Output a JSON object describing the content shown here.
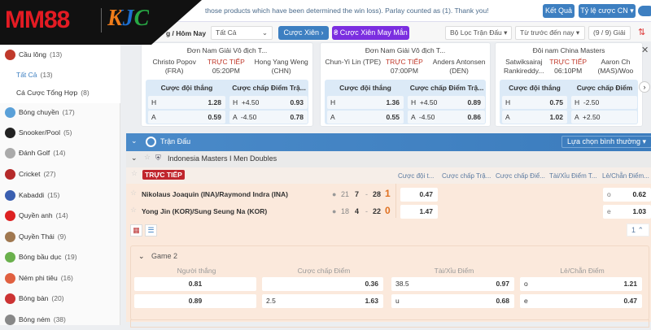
{
  "brand": {
    "logo_text": "MM88",
    "partner_text": "KJC"
  },
  "notice": "those products which have been determined the win loss). Parlay counted as (1). Thank you!",
  "header": {
    "results": "Kết Quả",
    "odds_type": "Tỷ lệ cược CN ▾"
  },
  "toolbar": {
    "date_label": "g / Hôm Nay",
    "filter_select": "Tất Cả",
    "parlay": "Cược Xiên",
    "lucky_parlay": "Cược Xiên May Mắn",
    "match_filter": "Bộ Lọc Trận Đấu ▾",
    "sort": "Từ trước đến nay ▾",
    "leagues": "(9 / 9) Giải"
  },
  "sidebar": {
    "items": [
      {
        "label": "Cầu lông",
        "count": "(13)",
        "color": "#c0392b"
      },
      {
        "label": "Tất Cả",
        "count": "(13)",
        "sub": true
      },
      {
        "label": "Cá Cược Tổng Hợp",
        "count": "(8)",
        "sub": true
      },
      {
        "label": "Bóng chuyền",
        "count": "(17)",
        "color": "#5aa0d8"
      },
      {
        "label": "Snooker/Pool",
        "count": "(5)",
        "color": "#222"
      },
      {
        "label": "Đánh Golf",
        "count": "(14)",
        "color": "#aaa"
      },
      {
        "label": "Cricket",
        "count": "(27)",
        "color": "#b52a2a"
      },
      {
        "label": "Kabaddi",
        "count": "(15)",
        "color": "#3a5fb0"
      },
      {
        "label": "Quyền anh",
        "count": "(14)",
        "color": "#d22"
      },
      {
        "label": "Quyền Thái",
        "count": "(9)",
        "color": "#a07850"
      },
      {
        "label": "Bóng bầu dục",
        "count": "(19)",
        "color": "#6ab04c"
      },
      {
        "label": "Ném phi tiêu",
        "count": "(16)",
        "color": "#e06040"
      },
      {
        "label": "Bóng bàn",
        "count": "(20)",
        "color": "#c33"
      },
      {
        "label": "Bóng ném",
        "count": "(38)",
        "color": "#888"
      }
    ]
  },
  "cards": [
    {
      "title": "Đơn Nam Giải Vô địch T...",
      "home": "Christo Popov\n(FRA)",
      "status": "TRỰC TIẾP",
      "time": "05:20PM",
      "away": "Hong Yang Weng\n(CHN)",
      "h1": "Cược đội thắng",
      "h2": "Cược chấp Điểm Trậ...",
      "rows": [
        {
          "s": "H",
          "w": "1.28",
          "hc": "H  +4.50",
          "ho": "0.93"
        },
        {
          "s": "A",
          "w": "0.59",
          "hc": "A  -4.50",
          "ho": "0.78"
        }
      ]
    },
    {
      "title": "Đơn Nam Giải Vô địch T...",
      "home": "Chun-Yi Lin (TPE)",
      "status": "TRỰC TIẾP",
      "time": "07:00PM",
      "away": "Anders Antonsen\n(DEN)",
      "h1": "Cược đội thắng",
      "h2": "Cược chấp Điểm Trậ...",
      "rows": [
        {
          "s": "H",
          "w": "1.36",
          "hc": "H  +4.50",
          "ho": "0.89"
        },
        {
          "s": "A",
          "w": "0.55",
          "hc": "A  -4.50",
          "ho": "0.86"
        }
      ]
    },
    {
      "title": "Đôi nam China Masters",
      "home": "Satwiksairaj\nRankireddy...",
      "status": "TRỰC TIẾP",
      "time": "06:10PM",
      "away": "Aaron Ch\n(MAS)/Woo",
      "h1": "Cược đội thắng",
      "h2": "Cược chấp Điểm",
      "rows": [
        {
          "s": "H",
          "w": "0.75",
          "hc": "H  -2.50",
          "ho": ""
        },
        {
          "s": "A",
          "w": "1.02",
          "hc": "A  +2.50",
          "ho": ""
        }
      ]
    }
  ],
  "section": {
    "title": "Trận Đấu",
    "view": "Lựa chọn bình thường ▾"
  },
  "league": "Indonesia Masters I Men Doubles",
  "live_badge": "TRỰC TIẾP",
  "columns": [
    "Cược đội t...",
    "Cược chấp Trậ...",
    "Cược chấp Điể...",
    "Tài/Xỉu Điểm T...",
    "Lẻ/Chẵn Điểm..."
  ],
  "teams": [
    {
      "name": "Nikolaus Joaquin (INA)/Raymond Indra (INA)",
      "prev": "21",
      "cur": "7",
      "opp": "28",
      "games": "1",
      "win": "0.47",
      "oe": "o",
      "oe_odds": "0.62"
    },
    {
      "name": "Yong Jin (KOR)/Sung Seung Na (KOR)",
      "prev": "18",
      "cur": "4",
      "opp": "22",
      "games": "0",
      "win": "1.47",
      "oe": "e",
      "oe_odds": "1.03"
    }
  ],
  "pager": "1",
  "game": {
    "title": "Game 2",
    "cols": [
      "Người thắng",
      "Cược chấp Điểm",
      "Tài/Xỉu Điểm",
      "Lẻ/Chẵn Điểm"
    ],
    "rows": [
      {
        "w": "0.81",
        "hl": "",
        "ho": "0.36",
        "tl": "38.5",
        "to": "0.97",
        "ol": "o",
        "oo": "1.21"
      },
      {
        "w": "0.89",
        "hl": "2.5",
        "ho": "1.63",
        "tl": "u",
        "to": "0.68",
        "ol": "e",
        "oo": "0.47"
      }
    ]
  }
}
